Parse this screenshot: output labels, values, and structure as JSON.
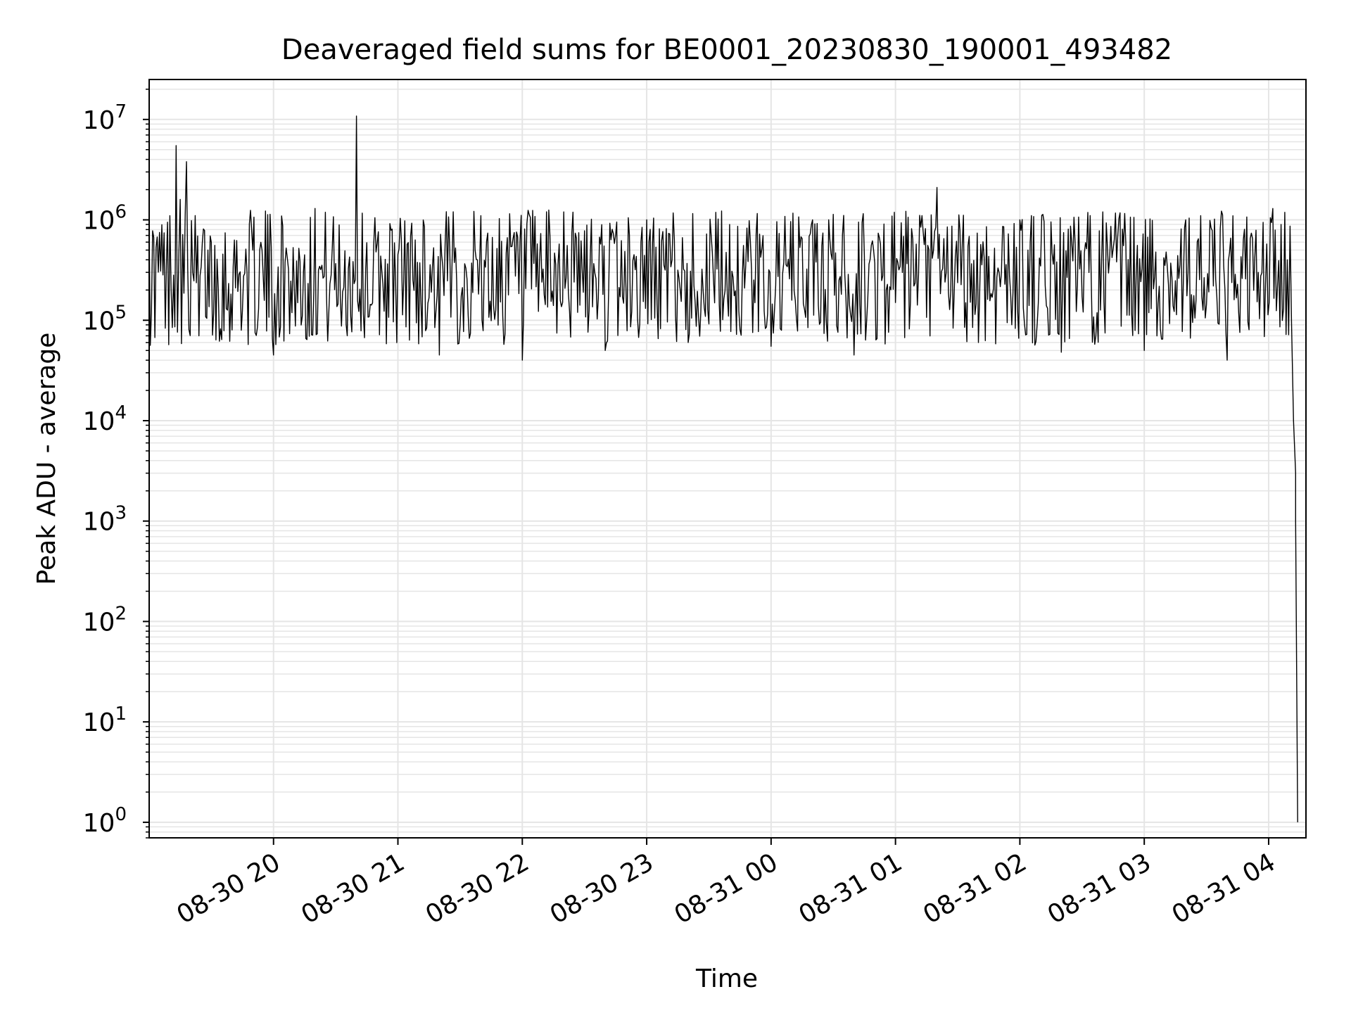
{
  "chart_data": {
    "type": "line",
    "title": "Deaveraged field sums for BE0001_20230830_190001_493482",
    "xlabel": "Time",
    "ylabel": "Peak ADU - average",
    "y_scale": "log",
    "ylim": [
      0.7,
      25000000
    ],
    "xlim": [
      "2023-08-30 19:00:01",
      "2023-08-31 04:18:00"
    ],
    "x_tick_labels": [
      "08-30 20",
      "08-30 21",
      "08-30 22",
      "08-30 23",
      "08-31 00",
      "08-31 01",
      "08-31 02",
      "08-31 03",
      "08-31 04"
    ],
    "x_tick_times": [
      "2023-08-30 20:00",
      "2023-08-30 21:00",
      "2023-08-30 22:00",
      "2023-08-30 23:00",
      "2023-08-31 00:00",
      "2023-08-31 01:00",
      "2023-08-31 02:00",
      "2023-08-31 03:00",
      "2023-08-31 04:00"
    ],
    "y_tick_labels": [
      {
        "base": "10",
        "exp": "0"
      },
      {
        "base": "10",
        "exp": "1"
      },
      {
        "base": "10",
        "exp": "2"
      },
      {
        "base": "10",
        "exp": "3"
      },
      {
        "base": "10",
        "exp": "4"
      },
      {
        "base": "10",
        "exp": "5"
      },
      {
        "base": "10",
        "exp": "6"
      },
      {
        "base": "10",
        "exp": "7"
      }
    ],
    "grid": true,
    "grid_color": "#e5e5e5",
    "line_color": "#000000",
    "series": [
      {
        "x": [
          "2023-08-30 19:00",
          "2023-08-30 19:05",
          "2023-08-30 19:10",
          "2023-08-30 19:13",
          "2023-08-30 19:15",
          "2023-08-30 19:18",
          "2023-08-30 19:21",
          "2023-08-30 19:24",
          "2023-08-30 19:30",
          "2023-08-30 19:40",
          "2023-08-30 19:50",
          "2023-08-30 20:00",
          "2023-08-30 20:20",
          "2023-08-30 20:40",
          "2023-08-30 21:00",
          "2023-08-30 21:20",
          "2023-08-30 21:40",
          "2023-08-30 22:00",
          "2023-08-30 22:20",
          "2023-08-30 22:40",
          "2023-08-30 23:00",
          "2023-08-30 23:20",
          "2023-08-30 23:40",
          "2023-08-31 00:00",
          "2023-08-31 00:20",
          "2023-08-31 00:40",
          "2023-08-31 01:00",
          "2023-08-31 01:20",
          "2023-08-31 01:40",
          "2023-08-31 02:00",
          "2023-08-31 02:20",
          "2023-08-31 02:40",
          "2023-08-31 03:00",
          "2023-08-31 03:20",
          "2023-08-31 03:40",
          "2023-08-31 03:55",
          "2023-08-31 04:02",
          "2023-08-31 04:06",
          "2023-08-31 04:09",
          "2023-08-31 04:11",
          "2023-08-31 04:12",
          "2023-08-31 04:13",
          "2023-08-31 04:13",
          "2023-08-31 04:14"
        ],
        "y": [
          800000,
          750000,
          1100000,
          5500000,
          1600000,
          3800000,
          300000,
          70000,
          600000,
          80000,
          500000,
          45000,
          1300000,
          10800000,
          450000,
          45000,
          1100000,
          40000,
          1200000,
          50000,
          1000000,
          60000,
          900000,
          55000,
          1000000,
          45000,
          150000,
          2100000,
          60000,
          1000000,
          48000,
          1200000,
          50000,
          1000000,
          40000,
          300000,
          1300000,
          900000,
          400000,
          100000,
          10000,
          3000,
          1000,
          1
        ]
      }
    ]
  }
}
